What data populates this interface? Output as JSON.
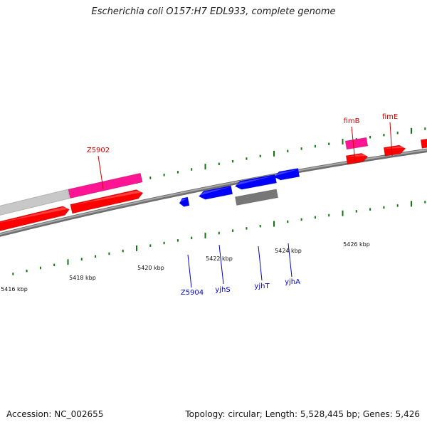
{
  "title": "Escherichia coli O157:H7 EDL933, complete genome",
  "footer": {
    "accession": "Accession: NC_002655",
    "summary": "Topology: circular; Length: 5,528,445 bp; Genes: 5,426"
  },
  "scale": {
    "unit": "kbp",
    "labels": [
      "5416 kbp",
      "5418 kbp",
      "5420 kbp",
      "5422 kbp",
      "5424 kbp",
      "5426 kbp"
    ]
  },
  "genes": {
    "forward_labels": [
      "Z5902",
      "fimB",
      "fimE"
    ],
    "reverse_labels": [
      "Z5904",
      "yjhS",
      "yjhT",
      "yjhA"
    ]
  },
  "colors": {
    "forward_label": "#cc0000",
    "reverse_label": "#0000cc",
    "tick": "#117711",
    "backbone": "#808080",
    "gene_red": "#ff0000",
    "gene_pink": "#ff1493",
    "gene_blue": "#0000ff",
    "gene_gray": "#777777",
    "gene_lightgray": "#c8c8c8"
  }
}
